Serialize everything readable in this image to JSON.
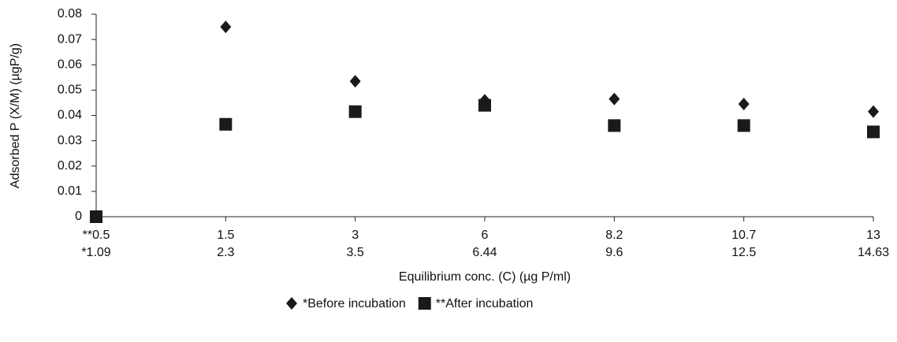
{
  "chart_data": {
    "type": "scatter",
    "y_label": "Adsorbed P (X/M) (µgP/g)",
    "x_label": "Equilibrium conc. (C) (µg P/ml)",
    "categories": [
      [
        "**0.5",
        "*1.09"
      ],
      [
        "1.5",
        "2.3"
      ],
      [
        "3",
        "3.5"
      ],
      [
        "6",
        "6.44"
      ],
      [
        "8.2",
        "9.6"
      ],
      [
        "10.7",
        "12.5"
      ],
      [
        "13",
        "14.63"
      ]
    ],
    "series": [
      {
        "name": "*Before incubation",
        "marker": "diamond",
        "color": "#1a1a1a",
        "values": [
          0,
          0.075,
          0.0535,
          0.046,
          0.0465,
          0.0445,
          0.0415
        ]
      },
      {
        "name": "**After incubation",
        "marker": "square",
        "color": "#1a1a1a",
        "values": [
          0,
          0.0365,
          0.0415,
          0.044,
          0.036,
          0.036,
          0.0335
        ]
      }
    ],
    "ylim": [
      0,
      0.08
    ],
    "yticks": [
      0,
      0.01,
      0.02,
      0.03,
      0.04,
      0.05,
      0.06,
      0.07,
      0.08
    ],
    "grid": false,
    "legend": "bottom"
  }
}
